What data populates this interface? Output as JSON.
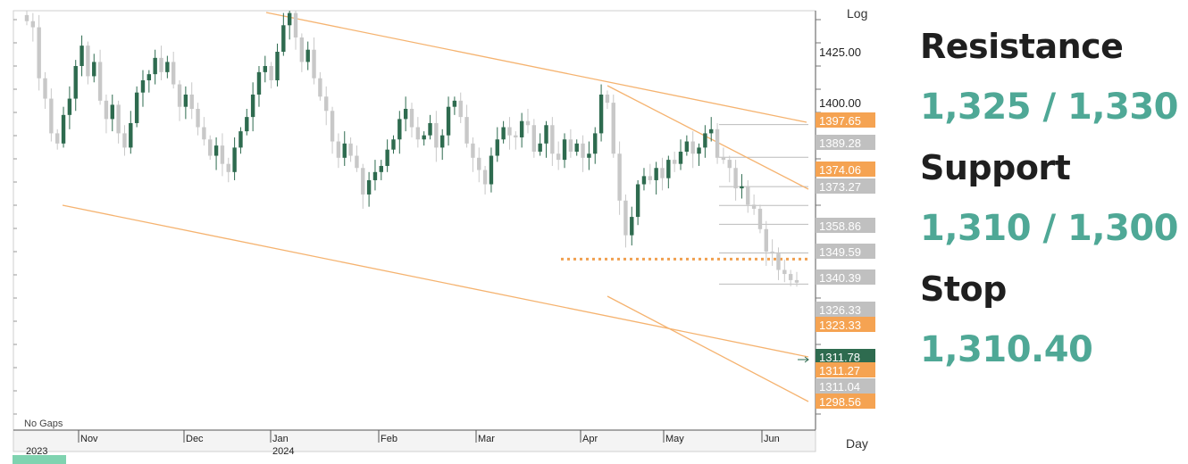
{
  "chart_data": {
    "type": "candlestick",
    "scale_label": "Log",
    "period_label": "Day",
    "gap_label": "No Gaps",
    "x_ticks": [
      "2023",
      "Nov",
      "Dec",
      "Jan",
      "2024",
      "Feb",
      "Mar",
      "Apr",
      "May",
      "Jun"
    ],
    "y_ticks": [
      1425.0,
      1400.0
    ],
    "price_labels": [
      {
        "value": "1397.65",
        "color": "orange"
      },
      {
        "value": "1389.28",
        "color": "gray"
      },
      {
        "value": "1374.06",
        "color": "orange"
      },
      {
        "value": "1373.27",
        "color": "gray"
      },
      {
        "value": "1358.86",
        "color": "gray"
      },
      {
        "value": "1349.59",
        "color": "gray"
      },
      {
        "value": "1340.39",
        "color": "gray"
      },
      {
        "value": "1326.33",
        "color": "gray"
      },
      {
        "value": "1323.33",
        "color": "orange"
      },
      {
        "value": "1311.78",
        "color": "dark-green"
      },
      {
        "value": "1311.27",
        "color": "orange"
      },
      {
        "value": "1311.04",
        "color": "gray"
      },
      {
        "value": "1298.56",
        "color": "orange"
      }
    ],
    "close_series": [
      1440,
      1437,
      1412,
      1402,
      1385,
      1380,
      1394,
      1402,
      1418,
      1428,
      1413,
      1420,
      1401,
      1392,
      1399,
      1385,
      1378,
      1390,
      1405,
      1411,
      1414,
      1422,
      1415,
      1420,
      1409,
      1398,
      1404,
      1397,
      1388,
      1382,
      1374,
      1379,
      1370,
      1366,
      1378,
      1386,
      1393,
      1404,
      1415,
      1418,
      1411,
      1425,
      1438,
      1444,
      1432,
      1420,
      1426,
      1412,
      1403,
      1396,
      1381,
      1373,
      1380,
      1374,
      1368,
      1355,
      1362,
      1366,
      1369,
      1377,
      1382,
      1392,
      1397,
      1388,
      1382,
      1384,
      1390,
      1378,
      1384,
      1398,
      1401,
      1393,
      1380,
      1373,
      1367,
      1360,
      1374,
      1382,
      1388,
      1384,
      1383,
      1391,
      1389,
      1376,
      1380,
      1389,
      1375,
      1372,
      1382,
      1376,
      1380,
      1373,
      1375,
      1385,
      1404,
      1400,
      1375,
      1352,
      1335,
      1344,
      1360,
      1364,
      1362,
      1368,
      1363,
      1372,
      1370,
      1376,
      1381,
      1375,
      1378,
      1385,
      1387,
      1373,
      1372,
      1368,
      1358,
      1359,
      1350,
      1348,
      1338,
      1327,
      1326,
      1318,
      1316,
      1313,
      1311.78
    ],
    "trend_lines": [
      "upper channel",
      "lower channel",
      "upper wedge",
      "lower wedge"
    ],
    "dotted_level": 1323.33,
    "xlabel": "",
    "ylabel": ""
  },
  "levels": {
    "resistance_label": "Resistance",
    "resistance_value": "1,325 / 1,330",
    "support_label": "Support",
    "support_value": "1,310 / 1,300",
    "stop_label": "Stop",
    "stop_value": "1,310.40"
  },
  "colors": {
    "up": "#2e6b4f",
    "down": "#c8c8c8",
    "trend": "#f5b370",
    "dotted": "#f0a050",
    "label_orange": "#f5a352",
    "label_gray": "#c0c0c0",
    "label_green": "#2e6b4f",
    "accent": "#4fa896"
  }
}
